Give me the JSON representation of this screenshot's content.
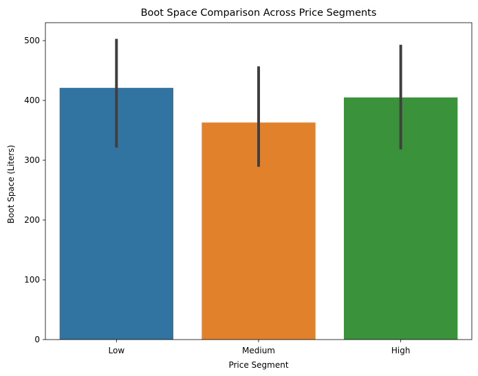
{
  "chart_data": {
    "type": "bar",
    "title": "Boot Space Comparison Across Price Segments",
    "xlabel": "Price Segment",
    "ylabel": "Boot Space (Liters)",
    "categories": [
      "Low",
      "Medium",
      "High"
    ],
    "values": [
      421,
      363,
      405
    ],
    "error_bars": [
      {
        "low": 321,
        "high": 503
      },
      {
        "low": 289,
        "high": 457
      },
      {
        "low": 318,
        "high": 493
      }
    ],
    "colors": [
      "#3274a1",
      "#e1812c",
      "#3a923a"
    ],
    "error_bar_color": "#3f3f3f",
    "ylim": [
      0,
      530
    ],
    "yticks": [
      0,
      100,
      200,
      300,
      400,
      500
    ],
    "grid": false,
    "legend": "none"
  }
}
